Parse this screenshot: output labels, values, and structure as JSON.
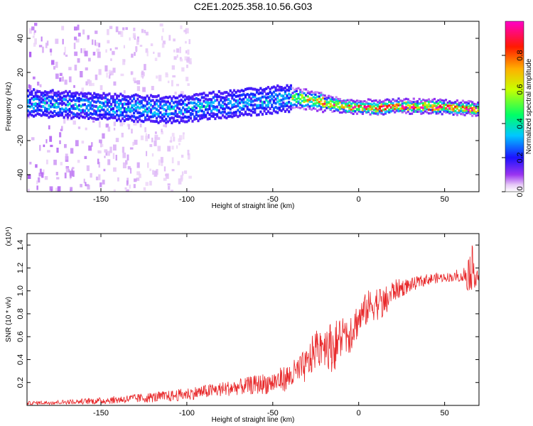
{
  "title": "C2E1.2025.358.10.56.G03",
  "chart_data": [
    {
      "type": "heatmap",
      "name": "spectrogram",
      "xlabel": "Height of straight line (km)",
      "ylabel": "Frequency (Hz)",
      "xlim": [
        -193,
        70
      ],
      "ylim": [
        -50,
        50
      ],
      "xticks": [
        -150,
        -100,
        -50,
        0,
        50
      ],
      "yticks": [
        -40,
        -20,
        0,
        20,
        40
      ],
      "colorbar": {
        "label": "Normalized spectral amplitude",
        "range": [
          0,
          1
        ],
        "ticks": [
          "0.0",
          "0.2",
          "0.4",
          "0.6",
          "0.8"
        ],
        "tick_values": [
          0.0,
          0.2,
          0.4,
          0.6,
          0.8
        ],
        "colormap": "rainbow (white-violet-blue-cyan-green-yellow-red-magenta)"
      },
      "ridge": {
        "description": "Dominant frequency band near 0 Hz",
        "x": [
          -190,
          -170,
          -150,
          -130,
          -110,
          -90,
          -70,
          -50,
          -40,
          -30,
          -20,
          -10,
          0,
          10,
          20,
          40,
          60,
          70
        ],
        "freq": [
          2,
          1,
          0,
          -1,
          -2,
          0,
          2,
          4,
          5,
          4,
          2,
          0,
          0,
          -1,
          0,
          0,
          -1,
          -2
        ],
        "amplitude": [
          0.12,
          0.15,
          0.2,
          0.22,
          0.25,
          0.3,
          0.33,
          0.4,
          0.6,
          0.75,
          0.85,
          0.9,
          0.92,
          0.95,
          0.97,
          0.97,
          0.95,
          0.9
        ]
      }
    },
    {
      "type": "line",
      "name": "snr",
      "xlabel": "Height of straight line (km)",
      "ylabel": "SNR (10 * v/v)",
      "y_scale_label": "(x10⁴)",
      "xlim": [
        -193,
        70
      ],
      "ylim": [
        0,
        1.5
      ],
      "xticks": [
        -150,
        -100,
        -50,
        0,
        50
      ],
      "yticks": [
        "0.2",
        "0.4",
        "0.6",
        "0.8",
        "1.0",
        "1.2",
        "1.4"
      ],
      "ytick_values": [
        0.2,
        0.4,
        0.6,
        0.8,
        1.0,
        1.2,
        1.4
      ],
      "color": "#e8282a",
      "envelope": {
        "x": [
          -193,
          -170,
          -150,
          -130,
          -110,
          -90,
          -70,
          -50,
          -40,
          -30,
          -25,
          -20,
          -15,
          -10,
          -5,
          0,
          5,
          10,
          15,
          20,
          30,
          40,
          50,
          60,
          63,
          66,
          70
        ],
        "mean": [
          0.02,
          0.03,
          0.04,
          0.06,
          0.08,
          0.12,
          0.16,
          0.2,
          0.25,
          0.35,
          0.5,
          0.55,
          0.5,
          0.6,
          0.65,
          0.75,
          0.85,
          0.9,
          0.88,
          1.0,
          1.05,
          1.1,
          1.12,
          1.12,
          1.15,
          1.2,
          1.12
        ],
        "spread": [
          0.015,
          0.02,
          0.03,
          0.04,
          0.05,
          0.06,
          0.07,
          0.1,
          0.12,
          0.15,
          0.18,
          0.2,
          0.22,
          0.2,
          0.2,
          0.15,
          0.15,
          0.15,
          0.15,
          0.1,
          0.06,
          0.05,
          0.04,
          0.04,
          0.15,
          0.2,
          0.05
        ]
      }
    }
  ]
}
